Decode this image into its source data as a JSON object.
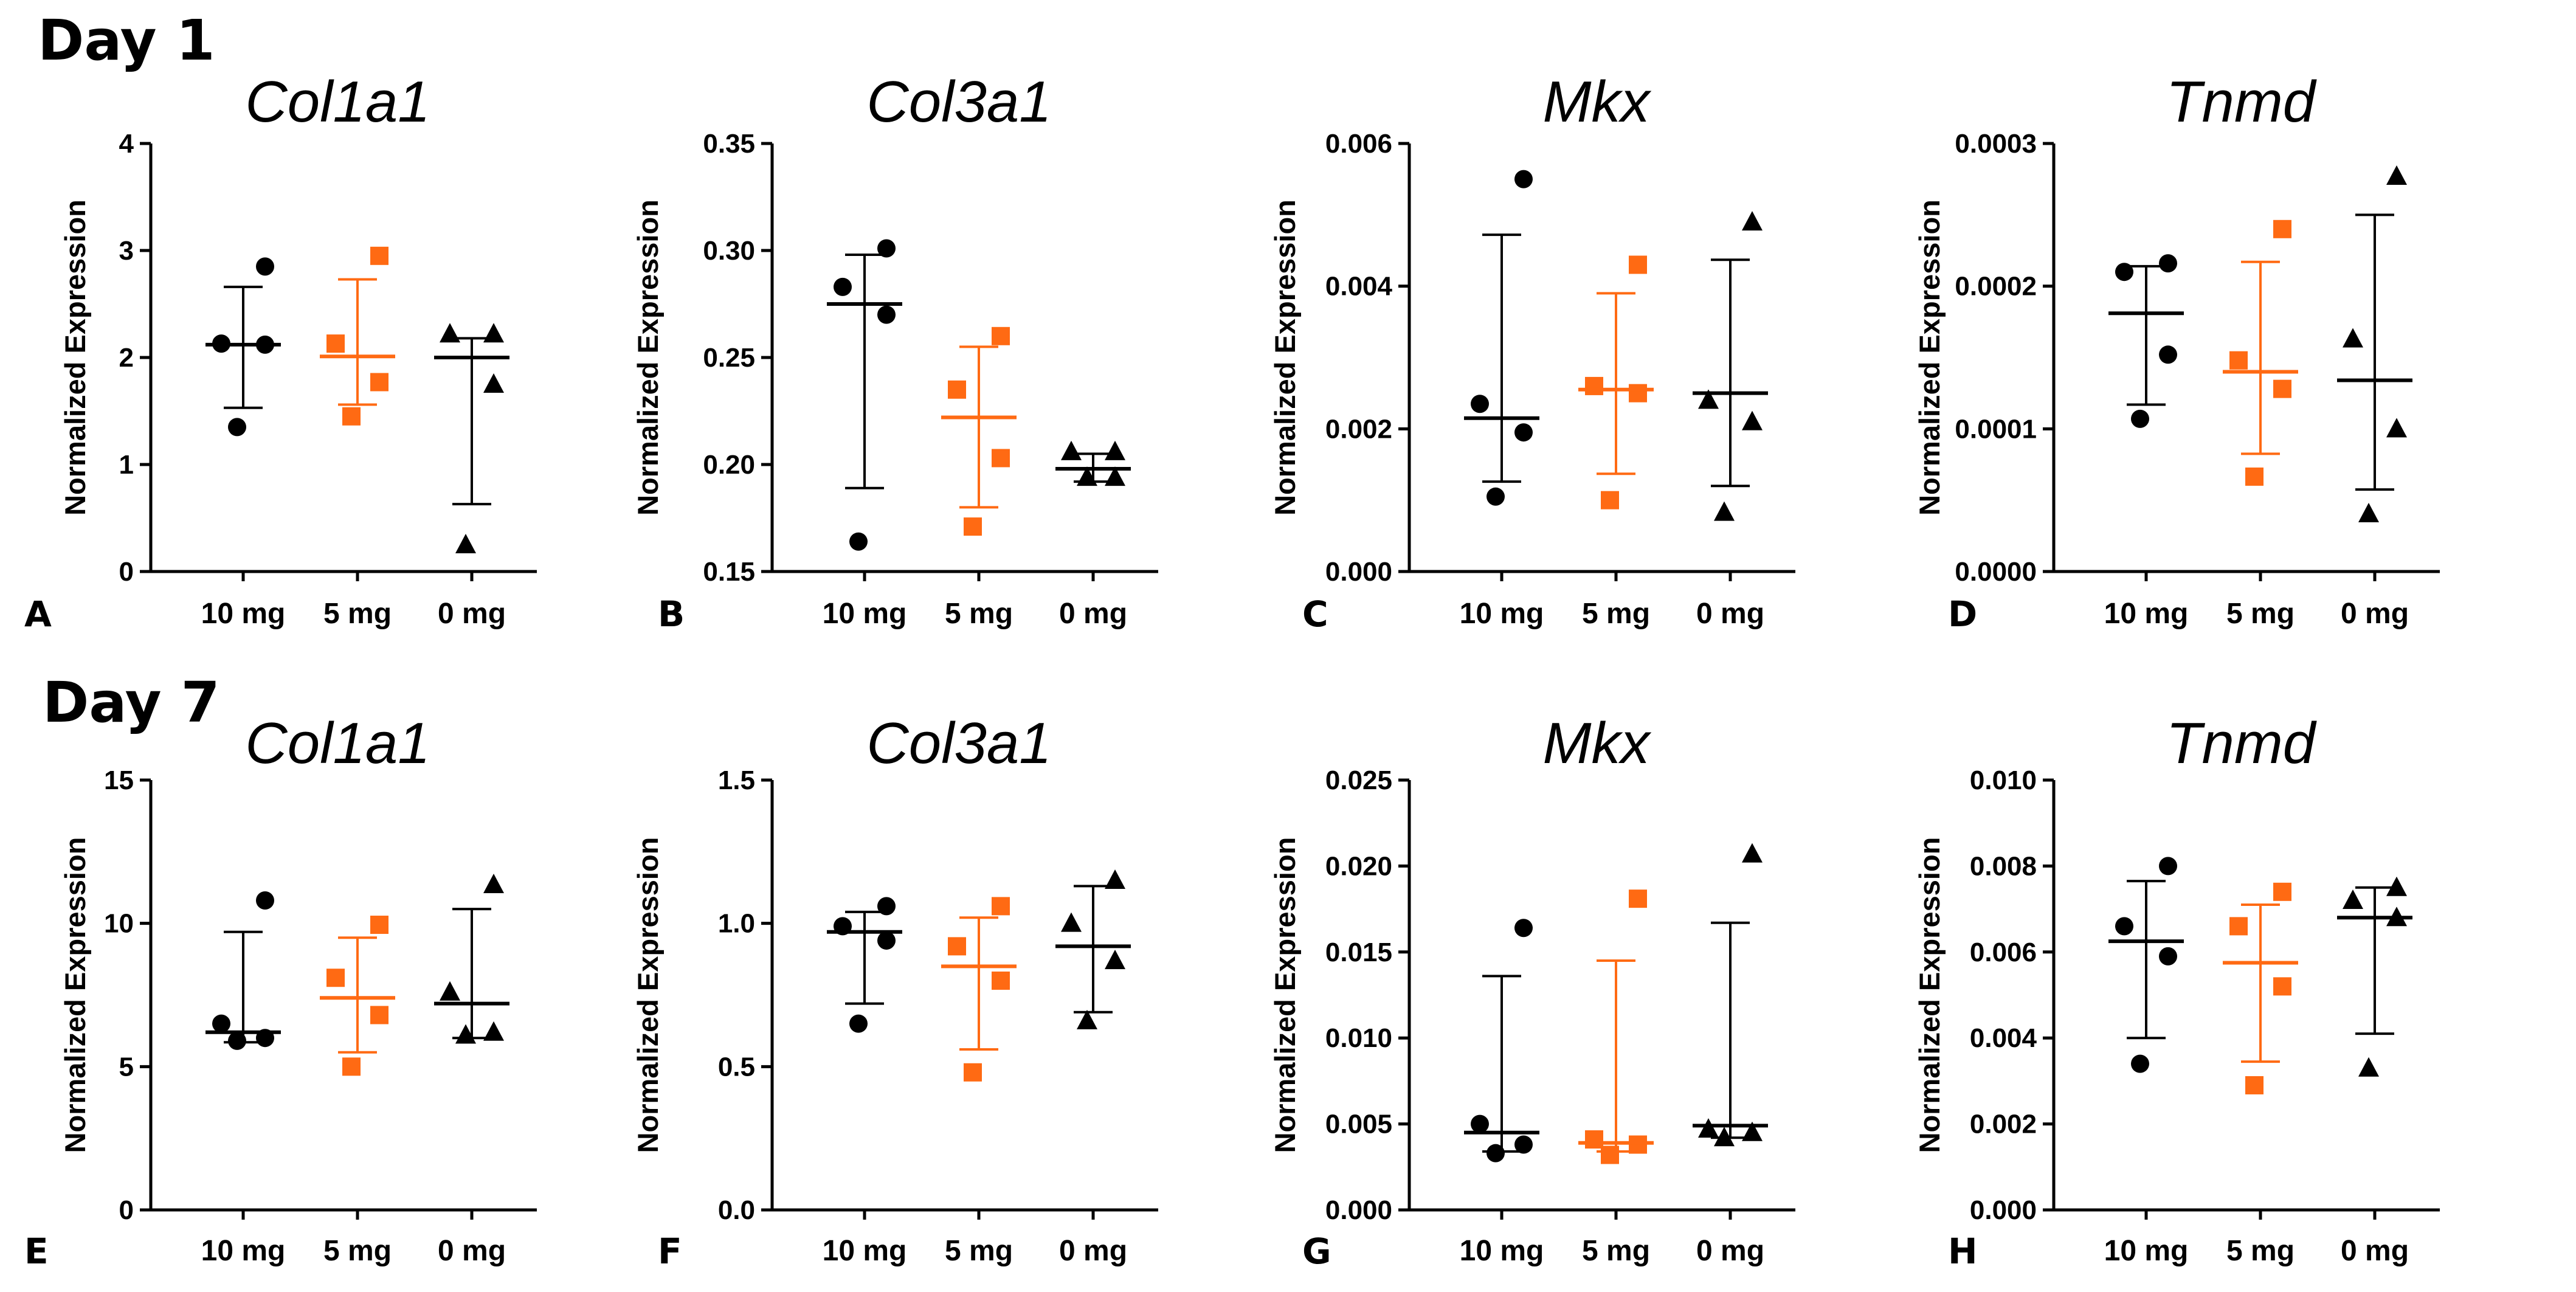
{
  "figure": {
    "day_labels": [
      "Day 1",
      "Day 7"
    ],
    "colors": {
      "10 mg": "#000000",
      "5 mg": "#ff6a13",
      "0 mg": "#000000"
    },
    "markers": {
      "10 mg": "circle",
      "5 mg": "square",
      "0 mg": "triangle"
    }
  },
  "chart_data": [
    {
      "type": "scatter",
      "panel": "A",
      "day": "Day 1",
      "title": "Col1a1",
      "ylabel": "Normalized Expression",
      "xlabel": "",
      "categories": [
        "10 mg",
        "5 mg",
        "0 mg"
      ],
      "ylim": [
        0,
        4
      ],
      "yticks": [
        "0",
        "1",
        "2",
        "3",
        "4"
      ],
      "series": [
        {
          "name": "10 mg",
          "points": [
            2.85,
            2.13,
            2.12,
            1.35
          ],
          "mean": 2.12,
          "sd_low": 1.53,
          "sd_high": 2.66
        },
        {
          "name": "5 mg",
          "points": [
            2.95,
            2.13,
            1.77,
            1.45
          ],
          "mean": 2.01,
          "sd_low": 1.56,
          "sd_high": 2.73
        },
        {
          "name": "0 mg",
          "points": [
            2.22,
            2.22,
            1.75,
            0.25
          ],
          "mean": 2.0,
          "sd_low": 0.63,
          "sd_high": 2.18
        }
      ]
    },
    {
      "type": "scatter",
      "panel": "B",
      "day": "Day 1",
      "title": "Col3a1",
      "ylabel": "Normalized Expression",
      "xlabel": "",
      "categories": [
        "10 mg",
        "5 mg",
        "0 mg"
      ],
      "ylim": [
        0.15,
        0.35
      ],
      "yticks": [
        "0.15",
        "0.20",
        "0.25",
        "0.30",
        "0.35"
      ],
      "series": [
        {
          "name": "10 mg",
          "points": [
            0.301,
            0.283,
            0.27,
            0.164
          ],
          "mean": 0.275,
          "sd_low": 0.189,
          "sd_high": 0.298
        },
        {
          "name": "5 mg",
          "points": [
            0.26,
            0.235,
            0.203,
            0.171
          ],
          "mean": 0.222,
          "sd_low": 0.18,
          "sd_high": 0.255
        },
        {
          "name": "0 mg",
          "points": [
            0.206,
            0.206,
            0.194,
            0.194
          ],
          "mean": 0.198,
          "sd_low": 0.192,
          "sd_high": 0.205
        }
      ]
    },
    {
      "type": "scatter",
      "panel": "C",
      "day": "Day 1",
      "title": "Mkx",
      "ylabel": "Normalized Expression",
      "xlabel": "",
      "categories": [
        "10 mg",
        "5 mg",
        "0 mg"
      ],
      "ylim": [
        0,
        0.006
      ],
      "yticks": [
        "0.000",
        "0.002",
        "0.004",
        "0.006"
      ],
      "series": [
        {
          "name": "10 mg",
          "points": [
            0.0055,
            0.00235,
            0.00195,
            0.00105
          ],
          "mean": 0.00215,
          "sd_low": 0.00126,
          "sd_high": 0.00472
        },
        {
          "name": "5 mg",
          "points": [
            0.0043,
            0.0026,
            0.0025,
            0.001
          ],
          "mean": 0.00255,
          "sd_low": 0.00137,
          "sd_high": 0.0039
        },
        {
          "name": "0 mg",
          "points": [
            0.0049,
            0.0024,
            0.0021,
            0.00083
          ],
          "mean": 0.0025,
          "sd_low": 0.0012,
          "sd_high": 0.00437
        }
      ]
    },
    {
      "type": "scatter",
      "panel": "D",
      "day": "Day 1",
      "title": "Tnmd",
      "ylabel": "Normalized Expression",
      "xlabel": "",
      "categories": [
        "10 mg",
        "5 mg",
        "0 mg"
      ],
      "ylim": [
        0,
        0.0003
      ],
      "yticks": [
        "0.0000",
        "0.0001",
        "0.0002",
        "0.0003"
      ],
      "series": [
        {
          "name": "10 mg",
          "points": [
            0.000216,
            0.00021,
            0.000152,
            0.000107
          ],
          "mean": 0.000181,
          "sd_low": 0.000117,
          "sd_high": 0.000214
        },
        {
          "name": "5 mg",
          "points": [
            0.00024,
            0.000148,
            0.000128,
            6.65e-05
          ],
          "mean": 0.00014,
          "sd_low": 8.25e-05,
          "sd_high": 0.000217
        },
        {
          "name": "0 mg",
          "points": [
            0.000277,
            0.000163,
            0.0001,
            4.05e-05
          ],
          "mean": 0.000134,
          "sd_low": 5.75e-05,
          "sd_high": 0.00025
        }
      ]
    },
    {
      "type": "scatter",
      "panel": "E",
      "day": "Day 7",
      "title": "Col1a1",
      "ylabel": "Normalized Expression",
      "xlabel": "",
      "categories": [
        "10 mg",
        "5 mg",
        "0 mg"
      ],
      "ylim": [
        0,
        15
      ],
      "yticks": [
        "0",
        "5",
        "10",
        "15"
      ],
      "series": [
        {
          "name": "10 mg",
          "points": [
            10.8,
            6.5,
            6.0,
            5.9
          ],
          "mean": 6.2,
          "sd_low": 5.85,
          "sd_high": 9.7
        },
        {
          "name": "5 mg",
          "points": [
            9.95,
            8.1,
            6.8,
            5.0
          ],
          "mean": 7.4,
          "sd_low": 5.5,
          "sd_high": 9.5
        },
        {
          "name": "0 mg",
          "points": [
            11.35,
            7.6,
            6.2,
            6.1
          ],
          "mean": 7.2,
          "sd_low": 6.0,
          "sd_high": 10.5
        }
      ]
    },
    {
      "type": "scatter",
      "panel": "F",
      "day": "Day 7",
      "title": "Col3a1",
      "ylabel": "Normalized Expression",
      "xlabel": "",
      "categories": [
        "10 mg",
        "5 mg",
        "0 mg"
      ],
      "ylim": [
        0,
        1.5
      ],
      "yticks": [
        "0.0",
        "0.5",
        "1.0",
        "1.5"
      ],
      "series": [
        {
          "name": "10 mg",
          "points": [
            1.06,
            0.99,
            0.94,
            0.65
          ],
          "mean": 0.97,
          "sd_low": 0.72,
          "sd_high": 1.04
        },
        {
          "name": "5 mg",
          "points": [
            1.06,
            0.92,
            0.8,
            0.48
          ],
          "mean": 0.85,
          "sd_low": 0.56,
          "sd_high": 1.02
        },
        {
          "name": "0 mg",
          "points": [
            1.15,
            1.0,
            0.87,
            0.66
          ],
          "mean": 0.92,
          "sd_low": 0.69,
          "sd_high": 1.13
        }
      ]
    },
    {
      "type": "scatter",
      "panel": "G",
      "day": "Day 7",
      "title": "Mkx",
      "ylabel": "Normalized Expression",
      "xlabel": "",
      "categories": [
        "10 mg",
        "5 mg",
        "0 mg"
      ],
      "ylim": [
        0,
        0.025
      ],
      "yticks": [
        "0.000",
        "0.005",
        "0.010",
        "0.015",
        "0.020",
        "0.025"
      ],
      "series": [
        {
          "name": "10 mg",
          "points": [
            0.0164,
            0.005,
            0.0038,
            0.0033
          ],
          "mean": 0.0045,
          "sd_low": 0.0034,
          "sd_high": 0.0136
        },
        {
          "name": "5 mg",
          "points": [
            0.0181,
            0.0041,
            0.0038,
            0.0032
          ],
          "mean": 0.0039,
          "sd_low": 0.0034,
          "sd_high": 0.0145
        },
        {
          "name": "0 mg",
          "points": [
            0.0207,
            0.0047,
            0.0045,
            0.0042
          ],
          "mean": 0.0049,
          "sd_low": 0.0042,
          "sd_high": 0.0167
        }
      ]
    },
    {
      "type": "scatter",
      "panel": "H",
      "day": "Day 7",
      "title": "Tnmd",
      "ylabel": "Normalized Expression",
      "xlabel": "",
      "categories": [
        "10 mg",
        "5 mg",
        "0 mg"
      ],
      "ylim": [
        0,
        0.01
      ],
      "yticks": [
        "0.000",
        "0.002",
        "0.004",
        "0.006",
        "0.008",
        "0.010"
      ],
      "series": [
        {
          "name": "10 mg",
          "points": [
            0.008,
            0.0066,
            0.0059,
            0.0034
          ],
          "mean": 0.00625,
          "sd_low": 0.004,
          "sd_high": 0.00765
        },
        {
          "name": "5 mg",
          "points": [
            0.0074,
            0.0066,
            0.0052,
            0.0029
          ],
          "mean": 0.00575,
          "sd_low": 0.00345,
          "sd_high": 0.0071
        },
        {
          "name": "0 mg",
          "points": [
            0.0075,
            0.0072,
            0.0068,
            0.0033
          ],
          "mean": 0.0068,
          "sd_low": 0.0041,
          "sd_high": 0.0075
        }
      ]
    }
  ]
}
